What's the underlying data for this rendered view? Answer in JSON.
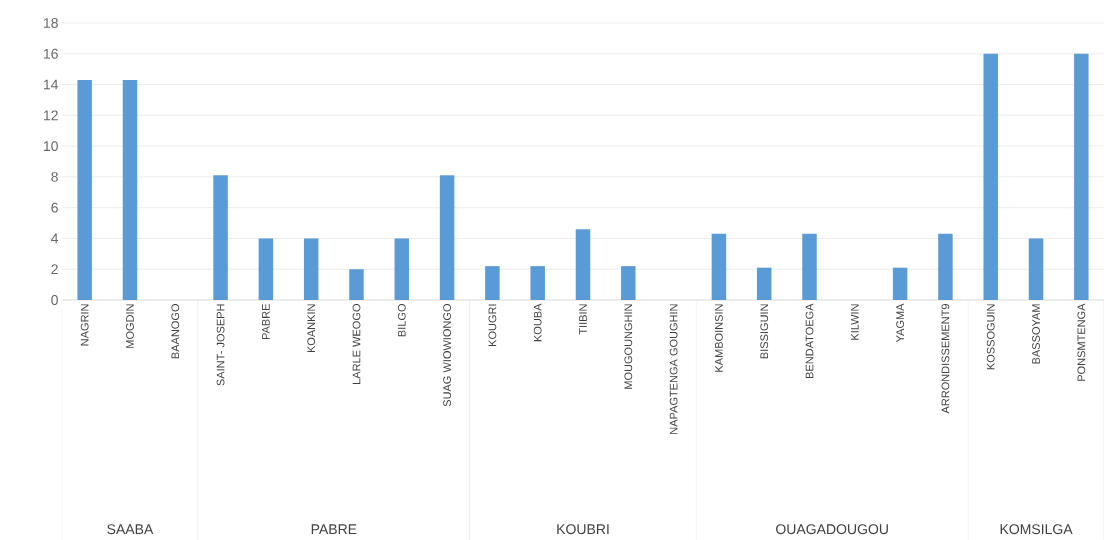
{
  "chart_data": {
    "type": "bar",
    "categories": [
      "NAGRIN",
      "MOGDIN",
      "BAANOGO",
      "SAINT- JOSEPH",
      "PABRE",
      "KOANKIN",
      "LARLE WEOGO",
      "BILGO",
      "SUAG WIOWIONGO",
      "KOUGRI",
      "KOUBA",
      "TIIBIN",
      "MOUGOUNGHIN",
      "NAPAGTENGA GOUGHIN",
      "KAMBOINSIN",
      "BISSIGUIN",
      "BENDATOEGA",
      "KILWIN",
      "YAGMA",
      "ARRONDISSEMENT9",
      "KOSSOGUIN",
      "BASSOYAM",
      "PONSMTENGA"
    ],
    "values": [
      14.3,
      14.3,
      0,
      8.1,
      4,
      4,
      2,
      4,
      8.1,
      2.2,
      2.2,
      4.6,
      2.2,
      0,
      4.3,
      2.1,
      4.3,
      0,
      2.1,
      4.3,
      16,
      4,
      16
    ],
    "color": "#5b9bd5",
    "ylim": [
      0,
      18
    ],
    "yticks": [
      0,
      2,
      4,
      6,
      8,
      10,
      12,
      14,
      16,
      18
    ],
    "grid": "y",
    "annotations": [
      "SAABA",
      "PABRE",
      "KOUBRI",
      "OUAGADOUGOU",
      "KOMSILGA"
    ]
  }
}
